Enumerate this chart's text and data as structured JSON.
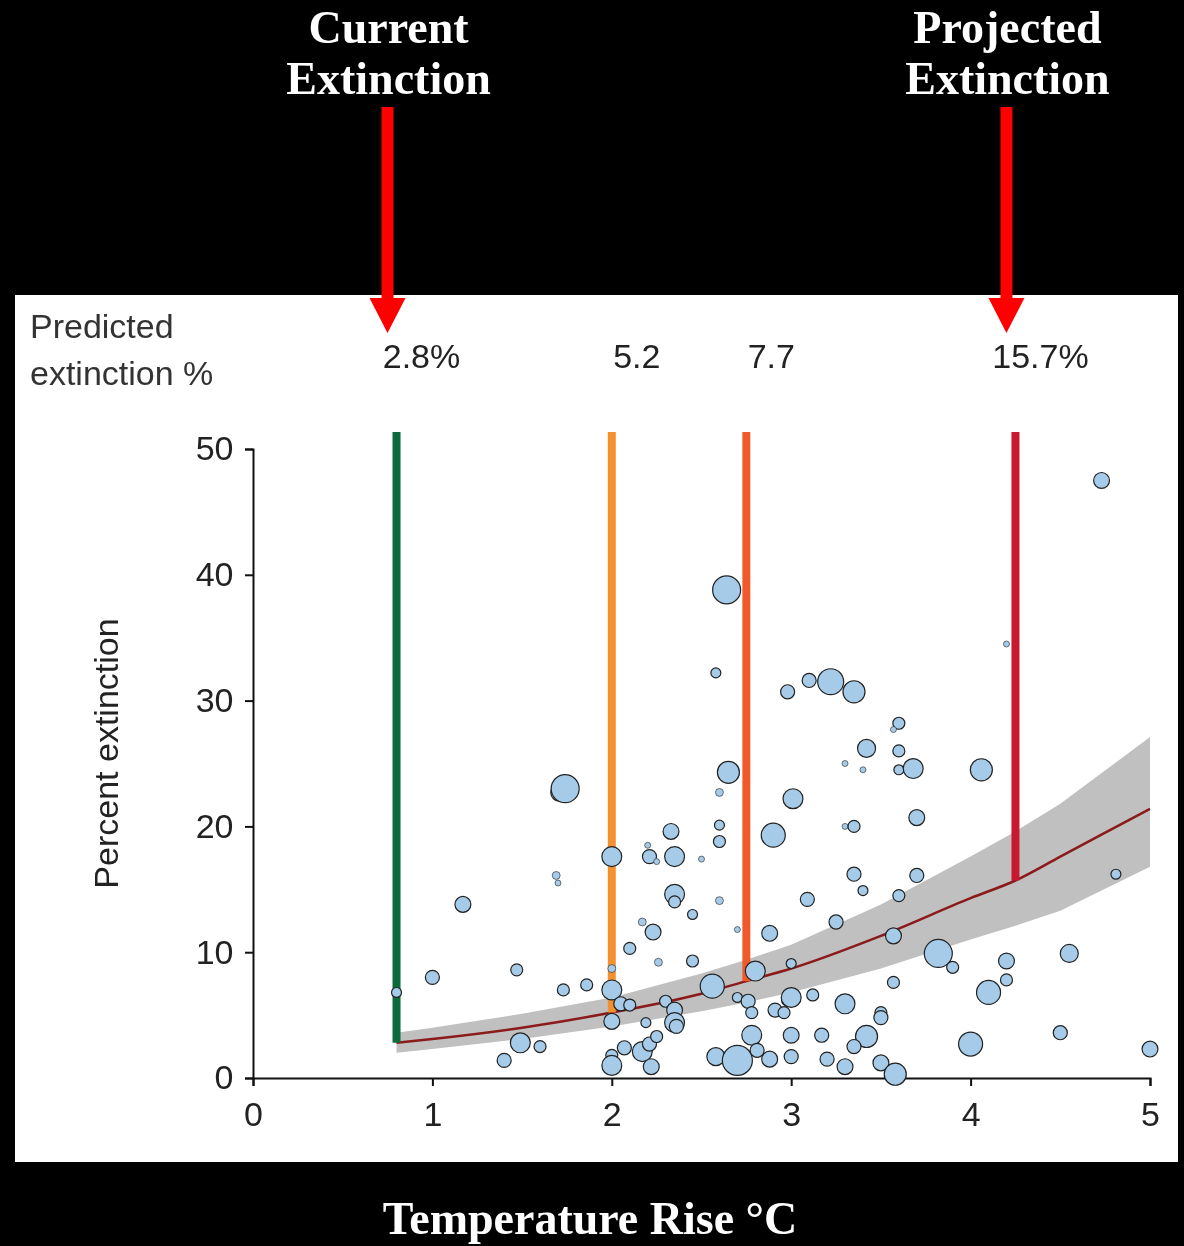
{
  "chart_data": {
    "type": "bubble",
    "xlabel": "Temperature Rise °C",
    "ylabel": "Percent extinction",
    "xlim": [
      0,
      5
    ],
    "xticks": [
      0,
      1,
      2,
      3,
      4,
      5
    ],
    "ylim": [
      0,
      50
    ],
    "yticks": [
      0,
      10,
      20,
      30,
      40,
      50
    ],
    "grid": false,
    "annotations": [
      "Predicted\nextinction %",
      "Current\nExtinction",
      "Projected\nExtinction",
      "2.8%",
      "5.2",
      "7.7",
      "15.7%"
    ],
    "ref_lines": [
      {
        "axis": "x",
        "value": 0.8,
        "color": "#0b6b3a"
      },
      {
        "axis": "x",
        "value": 2.0,
        "color": "#f39130"
      },
      {
        "axis": "x",
        "value": 2.75,
        "color": "#f05a2a"
      },
      {
        "axis": "x",
        "value": 4.25,
        "color": "#c8192e"
      }
    ],
    "series": [
      {
        "color": "#a6cbe8",
        "marker": "circle",
        "x": [
          0.8,
          1.0,
          1.17,
          1.4,
          1.49,
          1.47,
          1.6,
          1.69,
          1.7,
          1.71,
          1.74,
          1.73,
          1.86,
          2.0,
          2.0,
          2.0,
          2.0,
          2.0,
          2.0,
          2.05,
          2.1,
          2.07,
          2.1,
          2.17,
          2.21,
          2.25,
          2.22,
          2.19,
          2.17,
          2.23,
          2.26,
          2.2,
          2.21,
          2.25,
          2.33,
          2.35,
          2.35,
          2.35,
          2.3,
          2.35,
          2.35,
          2.36,
          2.45,
          2.45,
          2.5,
          2.56,
          2.58,
          2.7,
          2.64,
          2.58,
          2.65,
          2.6,
          2.6,
          2.6,
          2.6,
          2.7,
          2.7,
          2.76,
          2.78,
          2.78,
          2.8,
          2.81,
          2.88,
          2.88,
          2.9,
          2.91,
          2.96,
          2.98,
          3.0,
          3.0,
          2.98,
          3.1,
          3.22,
          3.01,
          3.09,
          3.0,
          3.0,
          3.17,
          3.2,
          3.3,
          3.3,
          3.12,
          3.25,
          3.35,
          3.6,
          3.57,
          3.42,
          3.6,
          3.3,
          3.4,
          3.6,
          3.68,
          4.06,
          4.2,
          4.73,
          3.7,
          3.3,
          3.35,
          3.35,
          3.4,
          3.7,
          3.6,
          4.81,
          3.57,
          3.82,
          3.9,
          3.57,
          4.2,
          4.2,
          4.1,
          4.55,
          3.5,
          3.5,
          3.42,
          3.35,
          3.5,
          3.58,
          4.0,
          4.5,
          5.0
        ],
        "values": [
          6.8,
          8.0,
          13.8,
          1.4,
          2.8,
          8.6,
          2.5,
          16.1,
          15.5,
          22.7,
          23.0,
          7.0,
          7.4,
          17.6,
          8.7,
          7.0,
          4.5,
          1.8,
          1.0,
          5.9,
          5.8,
          2.4,
          10.3,
          2.1,
          2.7,
          3.3,
          0.9,
          4.4,
          12.4,
          11.6,
          9.2,
          18.5,
          17.6,
          17.2,
          19.6,
          17.6,
          14.6,
          14.0,
          6.1,
          5.4,
          4.4,
          4.1,
          13.0,
          9.3,
          17.4,
          7.3,
          1.7,
          1.4,
          38.8,
          32.2,
          24.3,
          22.7,
          20.1,
          18.8,
          14.1,
          11.8,
          6.4,
          6.1,
          5.2,
          3.4,
          8.5,
          2.2,
          11.5,
          1.5,
          19.3,
          5.4,
          5.2,
          6.2,
          6.4,
          9.1,
          30.7,
          31.6,
          31.5,
          22.2,
          14.2,
          3.4,
          1.7,
          3.4,
          1.5,
          5.9,
          0.9,
          6.6,
          12.4,
          30.7,
          28.2,
          27.7,
          26.2,
          26.0,
          25.0,
          24.5,
          24.5,
          24.6,
          24.5,
          34.5,
          47.5,
          20.7,
          20.0,
          20.0,
          16.2,
          14.9,
          16.1,
          14.5,
          16.2,
          11.3,
          9.9,
          8.8,
          7.6,
          9.3,
          7.8,
          6.8,
          9.9,
          5.2,
          4.8,
          3.3,
          2.5,
          1.2,
          0.3,
          2.7,
          3.6,
          2.3
        ],
        "sizes": [
          0.11,
          0.22,
          0.28,
          0.22,
          0.44,
          0.16,
          0.16,
          0.07,
          0.04,
          0.36,
          0.87,
          0.16,
          0.16,
          0.44,
          0.07,
          0.44,
          0.28,
          0.16,
          0.44,
          0.22,
          0.16,
          0.22,
          0.16,
          0.44,
          0.22,
          0.16,
          0.28,
          0.11,
          0.07,
          0.28,
          0.07,
          0.04,
          0.22,
          0.04,
          0.28,
          0.44,
          0.44,
          0.16,
          0.16,
          0.28,
          0.44,
          0.22,
          0.11,
          0.16,
          0.04,
          0.64,
          0.36,
          1,
          0.87,
          0.11,
          0.54,
          0.07,
          0.11,
          0.16,
          0.07,
          0.04,
          0.11,
          0.22,
          0.16,
          0.44,
          0.44,
          0.22,
          0.28,
          0.28,
          0.64,
          0.22,
          0.16,
          0.16,
          0.44,
          0.11,
          0.22,
          0.22,
          0.75,
          0.44,
          0.22,
          0.28,
          0.22,
          0.22,
          0.22,
          0.44,
          0.28,
          0.16,
          0.22,
          0.54,
          0.16,
          0.04,
          0.36,
          0.16,
          0.04,
          0.04,
          0.11,
          0.44,
          0.54,
          0.04,
          0.28,
          0.28,
          0.04,
          0.16,
          0.22,
          0.11,
          0.22,
          0.16,
          0.11,
          0.28,
          0.87,
          0.16,
          0.16,
          0.28,
          0.16,
          0.64,
          0.36,
          0.16,
          0.22,
          0.54,
          0.22,
          0.28,
          0.54,
          0.64,
          0.22,
          0.28
        ]
      },
      {
        "type": "line",
        "color": "#8b1a1a",
        "x": [
          0.8,
          1,
          1.5,
          2,
          2.5,
          2.75,
          3,
          3.5,
          4,
          4.25,
          4.5,
          5
        ],
        "values": [
          2.8,
          3.1,
          4.0,
          5.2,
          6.7,
          7.7,
          8.7,
          11.3,
          14.3,
          15.7,
          17.6,
          21.4
        ],
        "lower": [
          2.0,
          2.3,
          3.1,
          4.1,
          5.3,
          6.0,
          6.8,
          8.7,
          11.0,
          12.1,
          13.3,
          16.8
        ],
        "upper": [
          3.6,
          4.0,
          5.1,
          6.4,
          8.3,
          9.4,
          10.6,
          13.8,
          17.6,
          19.6,
          21.8,
          27.1
        ]
      }
    ]
  }
}
